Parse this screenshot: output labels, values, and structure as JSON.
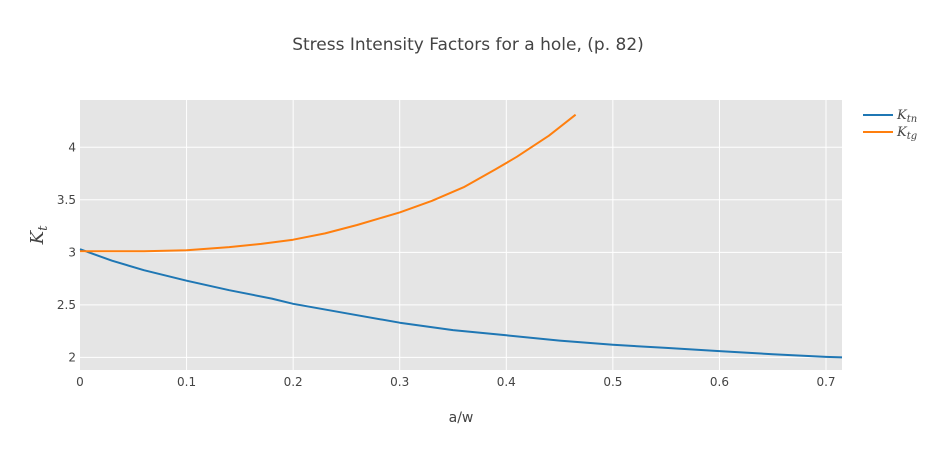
{
  "chart_data": {
    "type": "line",
    "title": "Stress Intensity Factors for a hole, (p. 82)",
    "xlabel": "a/w",
    "ylabel": "K",
    "ylabel_sub": "t",
    "xlim": [
      0,
      0.715
    ],
    "ylim": [
      1.88,
      4.45
    ],
    "xticks": [
      0,
      0.1,
      0.2,
      0.3,
      0.4,
      0.5,
      0.6,
      0.7
    ],
    "xtick_labels": [
      "0",
      "0.1",
      "0.2",
      "0.3",
      "0.4",
      "0.5",
      "0.6",
      "0.7"
    ],
    "yticks": [
      2,
      2.5,
      3,
      3.5,
      4
    ],
    "ytick_labels": [
      "2",
      "2.5",
      "3",
      "3.5",
      "4"
    ],
    "grid": true,
    "legend_position": "top-right",
    "series": [
      {
        "name": "K",
        "sub": "tn",
        "color": "#1f77b4",
        "x": [
          0,
          0.03,
          0.06,
          0.1,
          0.14,
          0.18,
          0.2,
          0.25,
          0.3,
          0.35,
          0.4,
          0.45,
          0.5,
          0.55,
          0.6,
          0.65,
          0.7,
          0.715
        ],
        "y": [
          3.03,
          2.92,
          2.83,
          2.73,
          2.64,
          2.56,
          2.51,
          2.42,
          2.33,
          2.26,
          2.21,
          2.16,
          2.12,
          2.09,
          2.06,
          2.03,
          2.005,
          2.0
        ]
      },
      {
        "name": "K",
        "sub": "tg",
        "color": "#ff7f0e",
        "x": [
          0,
          0.03,
          0.06,
          0.1,
          0.14,
          0.17,
          0.2,
          0.23,
          0.26,
          0.28,
          0.3,
          0.33,
          0.36,
          0.39,
          0.41,
          0.44,
          0.465
        ],
        "y": [
          3.01,
          3.01,
          3.01,
          3.02,
          3.05,
          3.08,
          3.12,
          3.18,
          3.26,
          3.32,
          3.38,
          3.49,
          3.62,
          3.79,
          3.91,
          4.11,
          4.31
        ]
      }
    ]
  }
}
